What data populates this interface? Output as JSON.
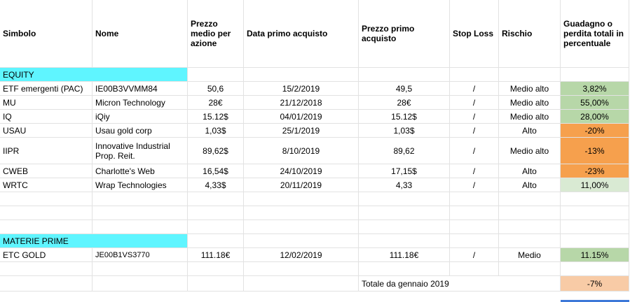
{
  "headers": {
    "simbolo": "Simbolo",
    "nome": "Nome",
    "prezzo_medio": "Prezzo medio per azione",
    "data_primo": "Data primo acquisto",
    "prezzo_primo": "Prezzo primo acquisto",
    "stop_loss": "Stop Loss",
    "rischio": "Rischio",
    "guadagno": "Guadagno o perdita totali in percentuale"
  },
  "sections": {
    "equity": "EQUITY",
    "materie_prime": "MATERIE PRIME"
  },
  "equity_rows": [
    {
      "simbolo": "ETF emergenti (PAC)",
      "nome": "IE00B3VVMM84",
      "prezzo_medio": "50,6",
      "data": "15/2/2019",
      "prezzo_primo": "49,5",
      "stop": "/",
      "rischio": "Medio alto",
      "guadagno": "3,82%"
    },
    {
      "simbolo": "MU",
      "nome": "Micron Technology",
      "prezzo_medio": "28€",
      "data": "21/12/2018",
      "prezzo_primo": "28€",
      "stop": "/",
      "rischio": "Medio alto",
      "guadagno": "55,00%"
    },
    {
      "simbolo": "IQ",
      "nome": "iQiy",
      "prezzo_medio": "15.12$",
      "data": "04/01/2019",
      "prezzo_primo": "15.12$",
      "stop": "/",
      "rischio": "Medio alto",
      "guadagno": "28,00%"
    },
    {
      "simbolo": "USAU",
      "nome": "Usau gold corp",
      "prezzo_medio": "1,03$",
      "data": "25/1/2019",
      "prezzo_primo": "1,03$",
      "stop": "/",
      "rischio": "Alto",
      "guadagno": "-20%"
    },
    {
      "simbolo": "IIPR",
      "nome": "Innovative Industrial Prop. Reit.",
      "prezzo_medio": "89,62$",
      "data": "8/10/2019",
      "prezzo_primo": "89,62",
      "stop": "/",
      "rischio": "Medio alto",
      "guadagno": "-13%"
    },
    {
      "simbolo": "CWEB",
      "nome": "Charlotte's Web",
      "prezzo_medio": "16,54$",
      "data": "24/10/2019",
      "prezzo_primo": "17,15$",
      "stop": "/",
      "rischio": "Alto",
      "guadagno": "-23%"
    },
    {
      "simbolo": "WRTC",
      "nome": "Wrap Technologies",
      "prezzo_medio": "4,33$",
      "data": "20/11/2019",
      "prezzo_primo": "4,33",
      "stop": "/",
      "rischio": "Alto",
      "guadagno": "11,00%"
    }
  ],
  "materie_rows": [
    {
      "simbolo": "ETC GOLD",
      "nome": "JE00B1VS3770",
      "prezzo_medio": "111.18€",
      "data": "12/02/2019",
      "prezzo_primo": "111.18€",
      "stop": "/",
      "rischio": "Medio",
      "guadagno": "11.15%"
    }
  ],
  "totale": {
    "label": "Totale da gennaio 2019",
    "value": "-7%"
  },
  "colors": {
    "section_header": "#5ff5ff",
    "gain": "#b7d7a8",
    "gain_light": "#d9ead3",
    "loss": "#f6a04d",
    "total": "#f8cba6",
    "selection": "#3c78d8"
  }
}
